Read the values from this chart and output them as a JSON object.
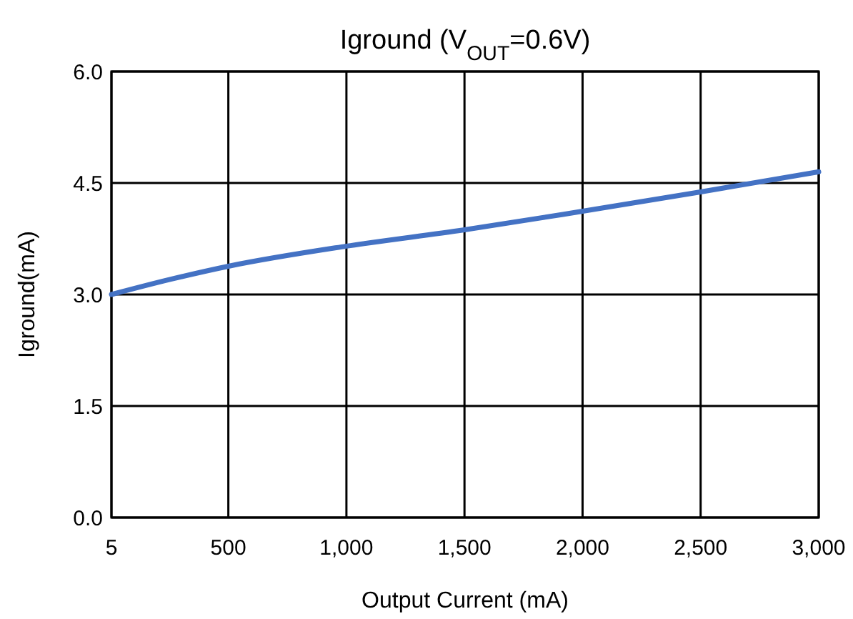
{
  "chart_data": {
    "type": "line",
    "title": "Iground  (V$_{OUT}$=0.6V)",
    "xlabel": "Output Current (mA)",
    "ylabel": "Iground(mA)",
    "x": [
      5,
      250,
      500,
      1000,
      1500,
      2000,
      2500,
      3000
    ],
    "series": [
      {
        "color": "#4472c4",
        "values": [
          3.0,
          3.2,
          3.38,
          3.65,
          3.87,
          4.12,
          4.38,
          4.65
        ]
      }
    ],
    "xlim": [
      5,
      3000
    ],
    "xticks": [
      5,
      {
        "value": 500,
        "label": "500"
      },
      {
        "value": 1000,
        "label": "1,000"
      },
      {
        "value": 1500,
        "label": "1,500"
      },
      {
        "value": 2000,
        "label": "2,000"
      },
      {
        "value": 2500,
        "label": "2,500"
      },
      {
        "value": 3000,
        "label": "3,000"
      }
    ],
    "ylim": [
      0,
      6
    ],
    "yticks": [
      {
        "value": 0,
        "label": "0.0"
      },
      {
        "value": 1.5,
        "label": "1.5"
      },
      {
        "value": 3,
        "label": "3.0"
      },
      {
        "value": 4.5,
        "label": "4.5"
      },
      {
        "value": 6,
        "label": "6.0"
      }
    ],
    "grid": true,
    "marker": "none",
    "line_style": "solid"
  }
}
